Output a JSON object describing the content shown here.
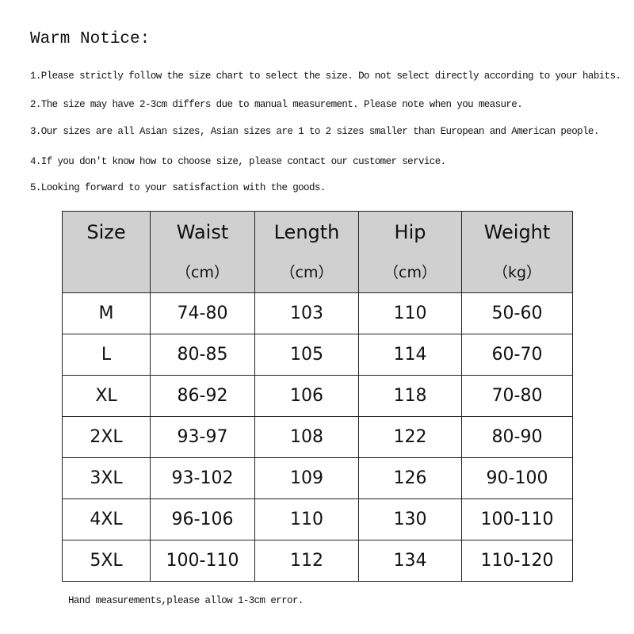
{
  "title": "Warm Notice:",
  "notes": [
    "1.Please strictly follow the size chart to select the size. Do not select directly according to your habits.",
    "2.The size may have 2-3cm differs due to manual measurement. Please note when you measure.",
    "3.Our sizes are all Asian sizes, Asian sizes are 1 to 2 sizes smaller than European and American people.",
    "4.If you don't know how to choose size, please contact our customer service.",
    "5.Looking forward to your satisfaction with the goods."
  ],
  "table": {
    "headers": [
      {
        "label": "Size",
        "unit": ""
      },
      {
        "label": "Waist",
        "unit": "（cm）"
      },
      {
        "label": "Length",
        "unit": "（cm）"
      },
      {
        "label": "Hip",
        "unit": "（cm）"
      },
      {
        "label": "Weight",
        "unit": "（kg）"
      }
    ],
    "rows": [
      [
        "M",
        "74-80",
        "103",
        "110",
        "50-60"
      ],
      [
        "L",
        "80-85",
        "105",
        "114",
        "60-70"
      ],
      [
        "XL",
        "86-92",
        "106",
        "118",
        "70-80"
      ],
      [
        "2XL",
        "93-97",
        "108",
        "122",
        "80-90"
      ],
      [
        "3XL",
        "93-102",
        "109",
        "126",
        "90-100"
      ],
      [
        "4XL",
        "96-106",
        "110",
        "130",
        "100-110"
      ],
      [
        "5XL",
        "100-110",
        "112",
        "134",
        "110-120"
      ]
    ]
  },
  "footer": "Hand measurements,please allow 1-3cm error.",
  "colors": {
    "header_bg": "#d0d0d0",
    "border": "#222222"
  }
}
